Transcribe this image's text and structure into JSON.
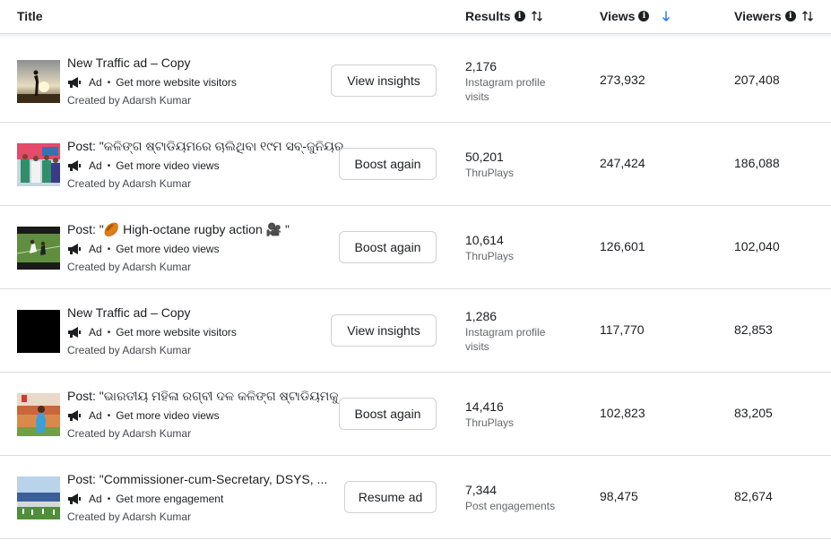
{
  "header": {
    "title": "Title",
    "results": "Results",
    "views": "Views",
    "viewers": "Viewers"
  },
  "rows": [
    {
      "name": "New Traffic ad – Copy",
      "type": "Ad",
      "goal": "Get more website visitors",
      "creator": "Created by Adarsh Kumar",
      "button": "View insights",
      "result_value": "2,176",
      "result_label": "Instagram profile visits",
      "views": "273,932",
      "viewers": "207,408"
    },
    {
      "name": "Post: \"କଳିଙ୍ଗ ଷ୍ଟାଡିୟମରେ ଚାଲିଥିବା ୧୯ମ ସବ୍-ଜୁନିୟର୍...",
      "type": "Ad",
      "goal": "Get more video views",
      "creator": "Created by Adarsh Kumar",
      "button": "Boost again",
      "result_value": "50,201",
      "result_label": "ThruPlays",
      "views": "247,424",
      "viewers": "186,088"
    },
    {
      "name": "Post: \"🏉 High-octane rugby action 🎥 \"",
      "type": "Ad",
      "goal": "Get more video views",
      "creator": "Created by Adarsh Kumar",
      "button": "Boost again",
      "result_value": "10,614",
      "result_label": "ThruPlays",
      "views": "126,601",
      "viewers": "102,040"
    },
    {
      "name": "New Traffic ad – Copy",
      "type": "Ad",
      "goal": "Get more website visitors",
      "creator": "Created by Adarsh Kumar",
      "button": "View insights",
      "result_value": "1,286",
      "result_label": "Instagram profile visits",
      "views": "117,770",
      "viewers": "82,853"
    },
    {
      "name": "Post: \"ଭାରତୀୟ ମହିଳା ରଗ୍‌ବୀ ଦଳ କଳିଙ୍ଗ ଷ୍ଟାଡିୟମକୁ ...",
      "type": "Ad",
      "goal": "Get more video views",
      "creator": "Created by Adarsh Kumar",
      "button": "Boost again",
      "result_value": "14,416",
      "result_label": "ThruPlays",
      "views": "102,823",
      "viewers": "83,205"
    },
    {
      "name": "Post: \"Commissioner-cum-Secretary, DSYS, ...",
      "type": "Ad",
      "goal": "Get more engagement",
      "creator": "Created by Adarsh Kumar",
      "button": "Resume ad",
      "result_value": "7,344",
      "result_label": "Post engagements",
      "views": "98,475",
      "viewers": "82,674"
    }
  ],
  "colors": {
    "accent_sort": "#1877f2",
    "border": "#dadde1",
    "secondary_text": "#65676b"
  },
  "icons": [
    "info-icon",
    "sort-icon",
    "sort-desc-icon",
    "megaphone-icon"
  ]
}
